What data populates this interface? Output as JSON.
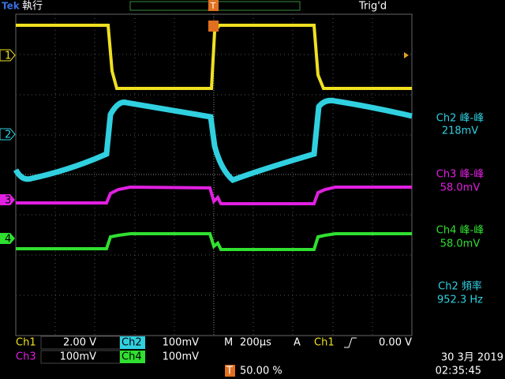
{
  "header": {
    "logo": "Tek",
    "run_state": "執行",
    "trigger_marker": "T",
    "trigger_state": "Trig'd"
  },
  "channel_markers": [
    "1",
    "2",
    "3",
    "4"
  ],
  "measurements": [
    {
      "label": "Ch2 峰-峰",
      "value": "218mV"
    },
    {
      "label": "Ch3 峰-峰",
      "value": "58.0mV"
    },
    {
      "label": "Ch4 峰-峰",
      "value": "58.0mV"
    },
    {
      "label": "Ch2 頻率",
      "value": "952.3 Hz"
    }
  ],
  "status": {
    "ch1": {
      "label": "Ch1",
      "scale": "2.00 V"
    },
    "ch2": {
      "label": "Ch2",
      "scale": "100mV"
    },
    "ch3": {
      "label": "Ch3",
      "scale": "100mV"
    },
    "ch4": {
      "label": "Ch4",
      "scale": "100mV"
    },
    "timebase": {
      "label": "M",
      "value": "200µs"
    },
    "trigger": {
      "mode": "A",
      "source": "Ch1",
      "level": "0.00 V"
    },
    "position": {
      "marker": "T",
      "value": "50.00 %"
    },
    "date": "30 3月 2019",
    "time": "02:35:45"
  }
}
